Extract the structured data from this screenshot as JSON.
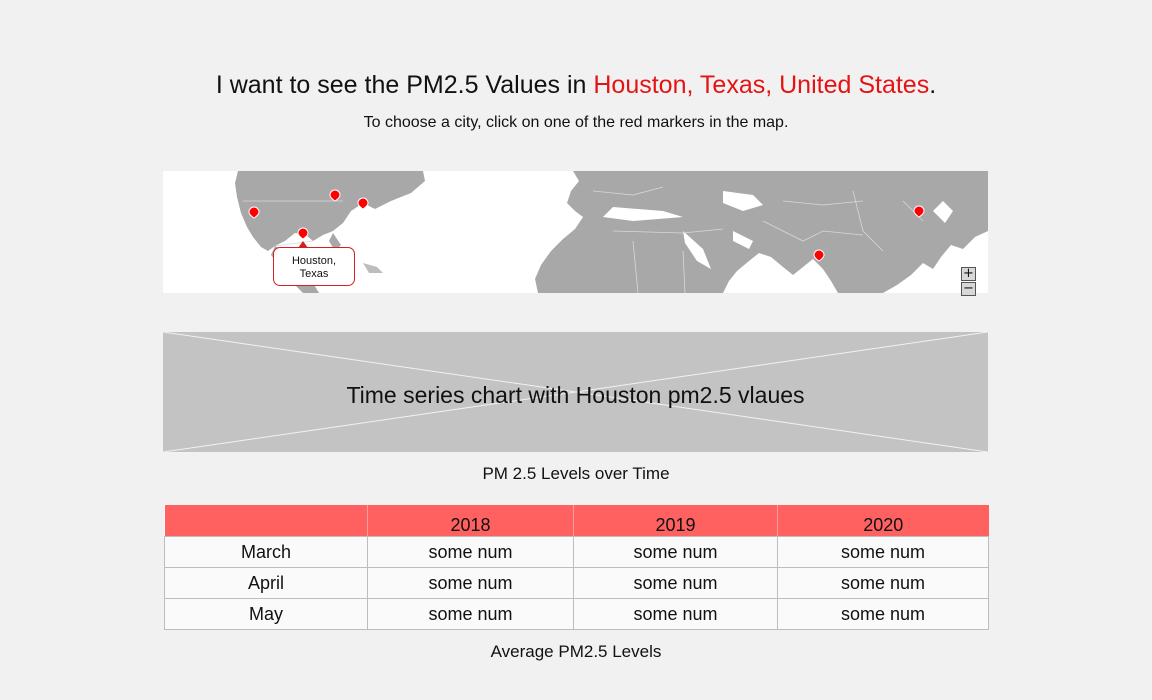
{
  "header": {
    "prefix": "I want to see the PM2.5 Values in",
    "city": "Houston, Texas, United States",
    "suffix": ".",
    "instruction": "To choose a city, click on one of the red markers in the map."
  },
  "map": {
    "selected_callout_line1": "Houston,",
    "selected_callout_line2": "Texas",
    "zoom_in_label": "+",
    "zoom_out_label": "−",
    "marker_color": "#ff0000",
    "land_color": "#a8a8a8"
  },
  "chart_placeholder": {
    "text": "Time series chart with Houston pm2.5 vlaues",
    "caption": "PM 2.5 Levels over Time"
  },
  "table": {
    "columns": [
      "",
      "2018",
      "2019",
      "2020"
    ],
    "rows": [
      {
        "month": "March",
        "values": [
          "some num",
          "some num",
          "some num"
        ]
      },
      {
        "month": "April",
        "values": [
          "some num",
          "some num",
          "some num"
        ]
      },
      {
        "month": "May",
        "values": [
          "some num",
          "some num",
          "some num"
        ]
      }
    ],
    "caption": "Average PM2.5 Levels",
    "header_color": "#ff6161"
  }
}
